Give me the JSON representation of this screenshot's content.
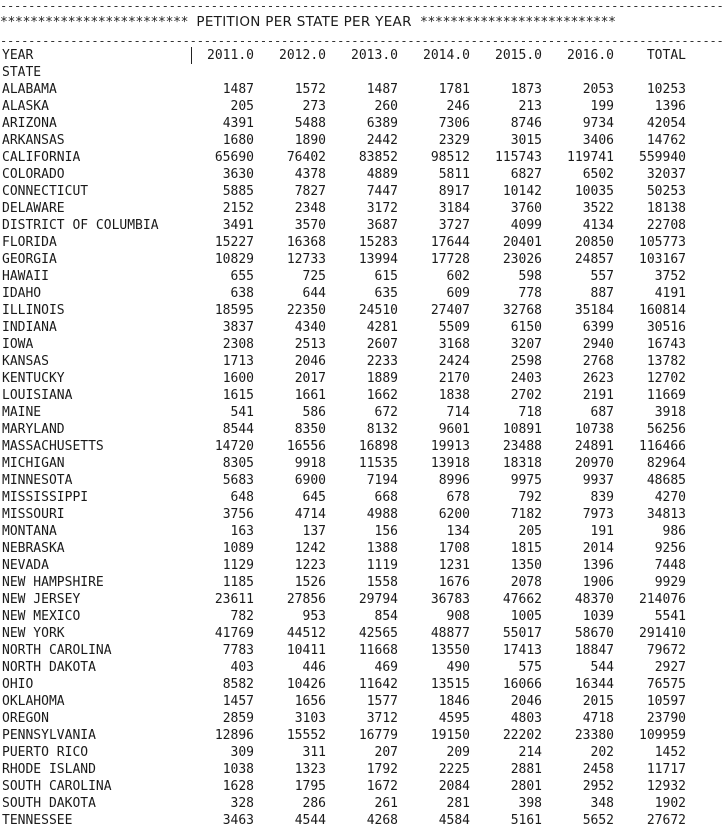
{
  "header": {
    "dash_line": "----------------------------------------------------------------------------------------------------------------",
    "stars_left": "*************************",
    "title": "PETITION PER STATE PER YEAR",
    "stars_right": "**************************"
  },
  "table": {
    "year_label": "YEAR",
    "state_label": "STATE",
    "columns": [
      "2011.0",
      "2012.0",
      "2013.0",
      "2014.0",
      "2015.0",
      "2016.0",
      "TOTAL"
    ],
    "rows": [
      {
        "state": "ALABAMA",
        "values": [
          "1487",
          "1572",
          "1487",
          "1781",
          "1873",
          "2053",
          "10253"
        ]
      },
      {
        "state": "ALASKA",
        "values": [
          "205",
          "273",
          "260",
          "246",
          "213",
          "199",
          "1396"
        ]
      },
      {
        "state": "ARIZONA",
        "values": [
          "4391",
          "5488",
          "6389",
          "7306",
          "8746",
          "9734",
          "42054"
        ]
      },
      {
        "state": "ARKANSAS",
        "values": [
          "1680",
          "1890",
          "2442",
          "2329",
          "3015",
          "3406",
          "14762"
        ]
      },
      {
        "state": "CALIFORNIA",
        "values": [
          "65690",
          "76402",
          "83852",
          "98512",
          "115743",
          "119741",
          "559940"
        ]
      },
      {
        "state": "COLORADO",
        "values": [
          "3630",
          "4378",
          "4889",
          "5811",
          "6827",
          "6502",
          "32037"
        ]
      },
      {
        "state": "CONNECTICUT",
        "values": [
          "5885",
          "7827",
          "7447",
          "8917",
          "10142",
          "10035",
          "50253"
        ]
      },
      {
        "state": "DELAWARE",
        "values": [
          "2152",
          "2348",
          "3172",
          "3184",
          "3760",
          "3522",
          "18138"
        ]
      },
      {
        "state": "DISTRICT OF COLUMBIA",
        "values": [
          "3491",
          "3570",
          "3687",
          "3727",
          "4099",
          "4134",
          "22708"
        ]
      },
      {
        "state": "FLORIDA",
        "values": [
          "15227",
          "16368",
          "15283",
          "17644",
          "20401",
          "20850",
          "105773"
        ]
      },
      {
        "state": "GEORGIA",
        "values": [
          "10829",
          "12733",
          "13994",
          "17728",
          "23026",
          "24857",
          "103167"
        ]
      },
      {
        "state": "HAWAII",
        "values": [
          "655",
          "725",
          "615",
          "602",
          "598",
          "557",
          "3752"
        ]
      },
      {
        "state": "IDAHO",
        "values": [
          "638",
          "644",
          "635",
          "609",
          "778",
          "887",
          "4191"
        ]
      },
      {
        "state": "ILLINOIS",
        "values": [
          "18595",
          "22350",
          "24510",
          "27407",
          "32768",
          "35184",
          "160814"
        ]
      },
      {
        "state": "INDIANA",
        "values": [
          "3837",
          "4340",
          "4281",
          "5509",
          "6150",
          "6399",
          "30516"
        ]
      },
      {
        "state": "IOWA",
        "values": [
          "2308",
          "2513",
          "2607",
          "3168",
          "3207",
          "2940",
          "16743"
        ]
      },
      {
        "state": "KANSAS",
        "values": [
          "1713",
          "2046",
          "2233",
          "2424",
          "2598",
          "2768",
          "13782"
        ]
      },
      {
        "state": "KENTUCKY",
        "values": [
          "1600",
          "2017",
          "1889",
          "2170",
          "2403",
          "2623",
          "12702"
        ]
      },
      {
        "state": "LOUISIANA",
        "values": [
          "1615",
          "1661",
          "1662",
          "1838",
          "2702",
          "2191",
          "11669"
        ]
      },
      {
        "state": "MAINE",
        "values": [
          "541",
          "586",
          "672",
          "714",
          "718",
          "687",
          "3918"
        ]
      },
      {
        "state": "MARYLAND",
        "values": [
          "8544",
          "8350",
          "8132",
          "9601",
          "10891",
          "10738",
          "56256"
        ]
      },
      {
        "state": "MASSACHUSETTS",
        "values": [
          "14720",
          "16556",
          "16898",
          "19913",
          "23488",
          "24891",
          "116466"
        ]
      },
      {
        "state": "MICHIGAN",
        "values": [
          "8305",
          "9918",
          "11535",
          "13918",
          "18318",
          "20970",
          "82964"
        ]
      },
      {
        "state": "MINNESOTA",
        "values": [
          "5683",
          "6900",
          "7194",
          "8996",
          "9975",
          "9937",
          "48685"
        ]
      },
      {
        "state": "MISSISSIPPI",
        "values": [
          "648",
          "645",
          "668",
          "678",
          "792",
          "839",
          "4270"
        ]
      },
      {
        "state": "MISSOURI",
        "values": [
          "3756",
          "4714",
          "4988",
          "6200",
          "7182",
          "7973",
          "34813"
        ]
      },
      {
        "state": "MONTANA",
        "values": [
          "163",
          "137",
          "156",
          "134",
          "205",
          "191",
          "986"
        ]
      },
      {
        "state": "NEBRASKA",
        "values": [
          "1089",
          "1242",
          "1388",
          "1708",
          "1815",
          "2014",
          "9256"
        ]
      },
      {
        "state": "NEVADA",
        "values": [
          "1129",
          "1223",
          "1119",
          "1231",
          "1350",
          "1396",
          "7448"
        ]
      },
      {
        "state": "NEW HAMPSHIRE",
        "values": [
          "1185",
          "1526",
          "1558",
          "1676",
          "2078",
          "1906",
          "9929"
        ]
      },
      {
        "state": "NEW JERSEY",
        "values": [
          "23611",
          "27856",
          "29794",
          "36783",
          "47662",
          "48370",
          "214076"
        ]
      },
      {
        "state": "NEW MEXICO",
        "values": [
          "782",
          "953",
          "854",
          "908",
          "1005",
          "1039",
          "5541"
        ]
      },
      {
        "state": "NEW YORK",
        "values": [
          "41769",
          "44512",
          "42565",
          "48877",
          "55017",
          "58670",
          "291410"
        ]
      },
      {
        "state": "NORTH CAROLINA",
        "values": [
          "7783",
          "10411",
          "11668",
          "13550",
          "17413",
          "18847",
          "79672"
        ]
      },
      {
        "state": "NORTH DAKOTA",
        "values": [
          "403",
          "446",
          "469",
          "490",
          "575",
          "544",
          "2927"
        ]
      },
      {
        "state": "OHIO",
        "values": [
          "8582",
          "10426",
          "11642",
          "13515",
          "16066",
          "16344",
          "76575"
        ]
      },
      {
        "state": "OKLAHOMA",
        "values": [
          "1457",
          "1656",
          "1577",
          "1846",
          "2046",
          "2015",
          "10597"
        ]
      },
      {
        "state": "OREGON",
        "values": [
          "2859",
          "3103",
          "3712",
          "4595",
          "4803",
          "4718",
          "23790"
        ]
      },
      {
        "state": "PENNSYLVANIA",
        "values": [
          "12896",
          "15552",
          "16779",
          "19150",
          "22202",
          "23380",
          "109959"
        ]
      },
      {
        "state": "PUERTO RICO",
        "values": [
          "309",
          "311",
          "207",
          "209",
          "214",
          "202",
          "1452"
        ]
      },
      {
        "state": "RHODE ISLAND",
        "values": [
          "1038",
          "1323",
          "1792",
          "2225",
          "2881",
          "2458",
          "11717"
        ]
      },
      {
        "state": "SOUTH CAROLINA",
        "values": [
          "1628",
          "1795",
          "1672",
          "2084",
          "2801",
          "2952",
          "12932"
        ]
      },
      {
        "state": "SOUTH DAKOTA",
        "values": [
          "328",
          "286",
          "261",
          "281",
          "398",
          "348",
          "1902"
        ]
      },
      {
        "state": "TENNESSEE",
        "values": [
          "3463",
          "4544",
          "4268",
          "4584",
          "5161",
          "5652",
          "27672"
        ]
      }
    ]
  }
}
